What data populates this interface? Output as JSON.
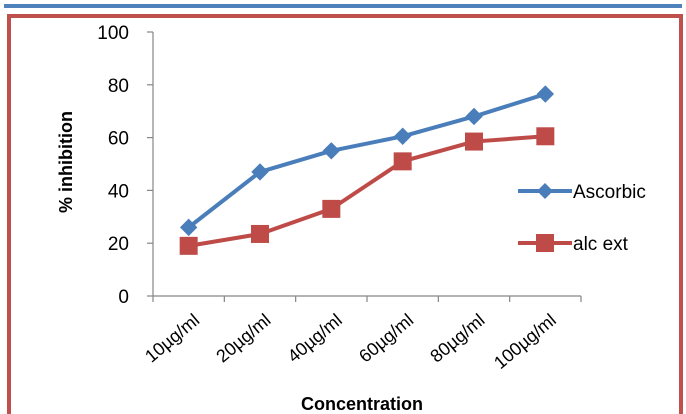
{
  "chart_data": {
    "type": "line",
    "title": "",
    "xlabel": "Concentration",
    "ylabel": "% inhibition",
    "categories": [
      "10µg/ml",
      "20µg/ml",
      "40µg/ml",
      "60µg/ml",
      "80µg/ml",
      "100µg/ml"
    ],
    "ylim": [
      0,
      100
    ],
    "yticks": [
      0,
      20,
      40,
      60,
      80,
      100
    ],
    "grid": false,
    "legend": "right",
    "series": [
      {
        "name": "Ascorbic",
        "values": [
          26,
          47,
          55,
          60.5,
          68,
          76.5
        ],
        "color": "#4a7ebb",
        "marker": "diamond"
      },
      {
        "name": "alc ext",
        "values": [
          19,
          23.5,
          33,
          51,
          58.5,
          60.5
        ],
        "color": "#be4b48",
        "marker": "square"
      }
    ]
  },
  "colors": {
    "frame": "#c0504d",
    "top_rule": "#4f81bd"
  }
}
